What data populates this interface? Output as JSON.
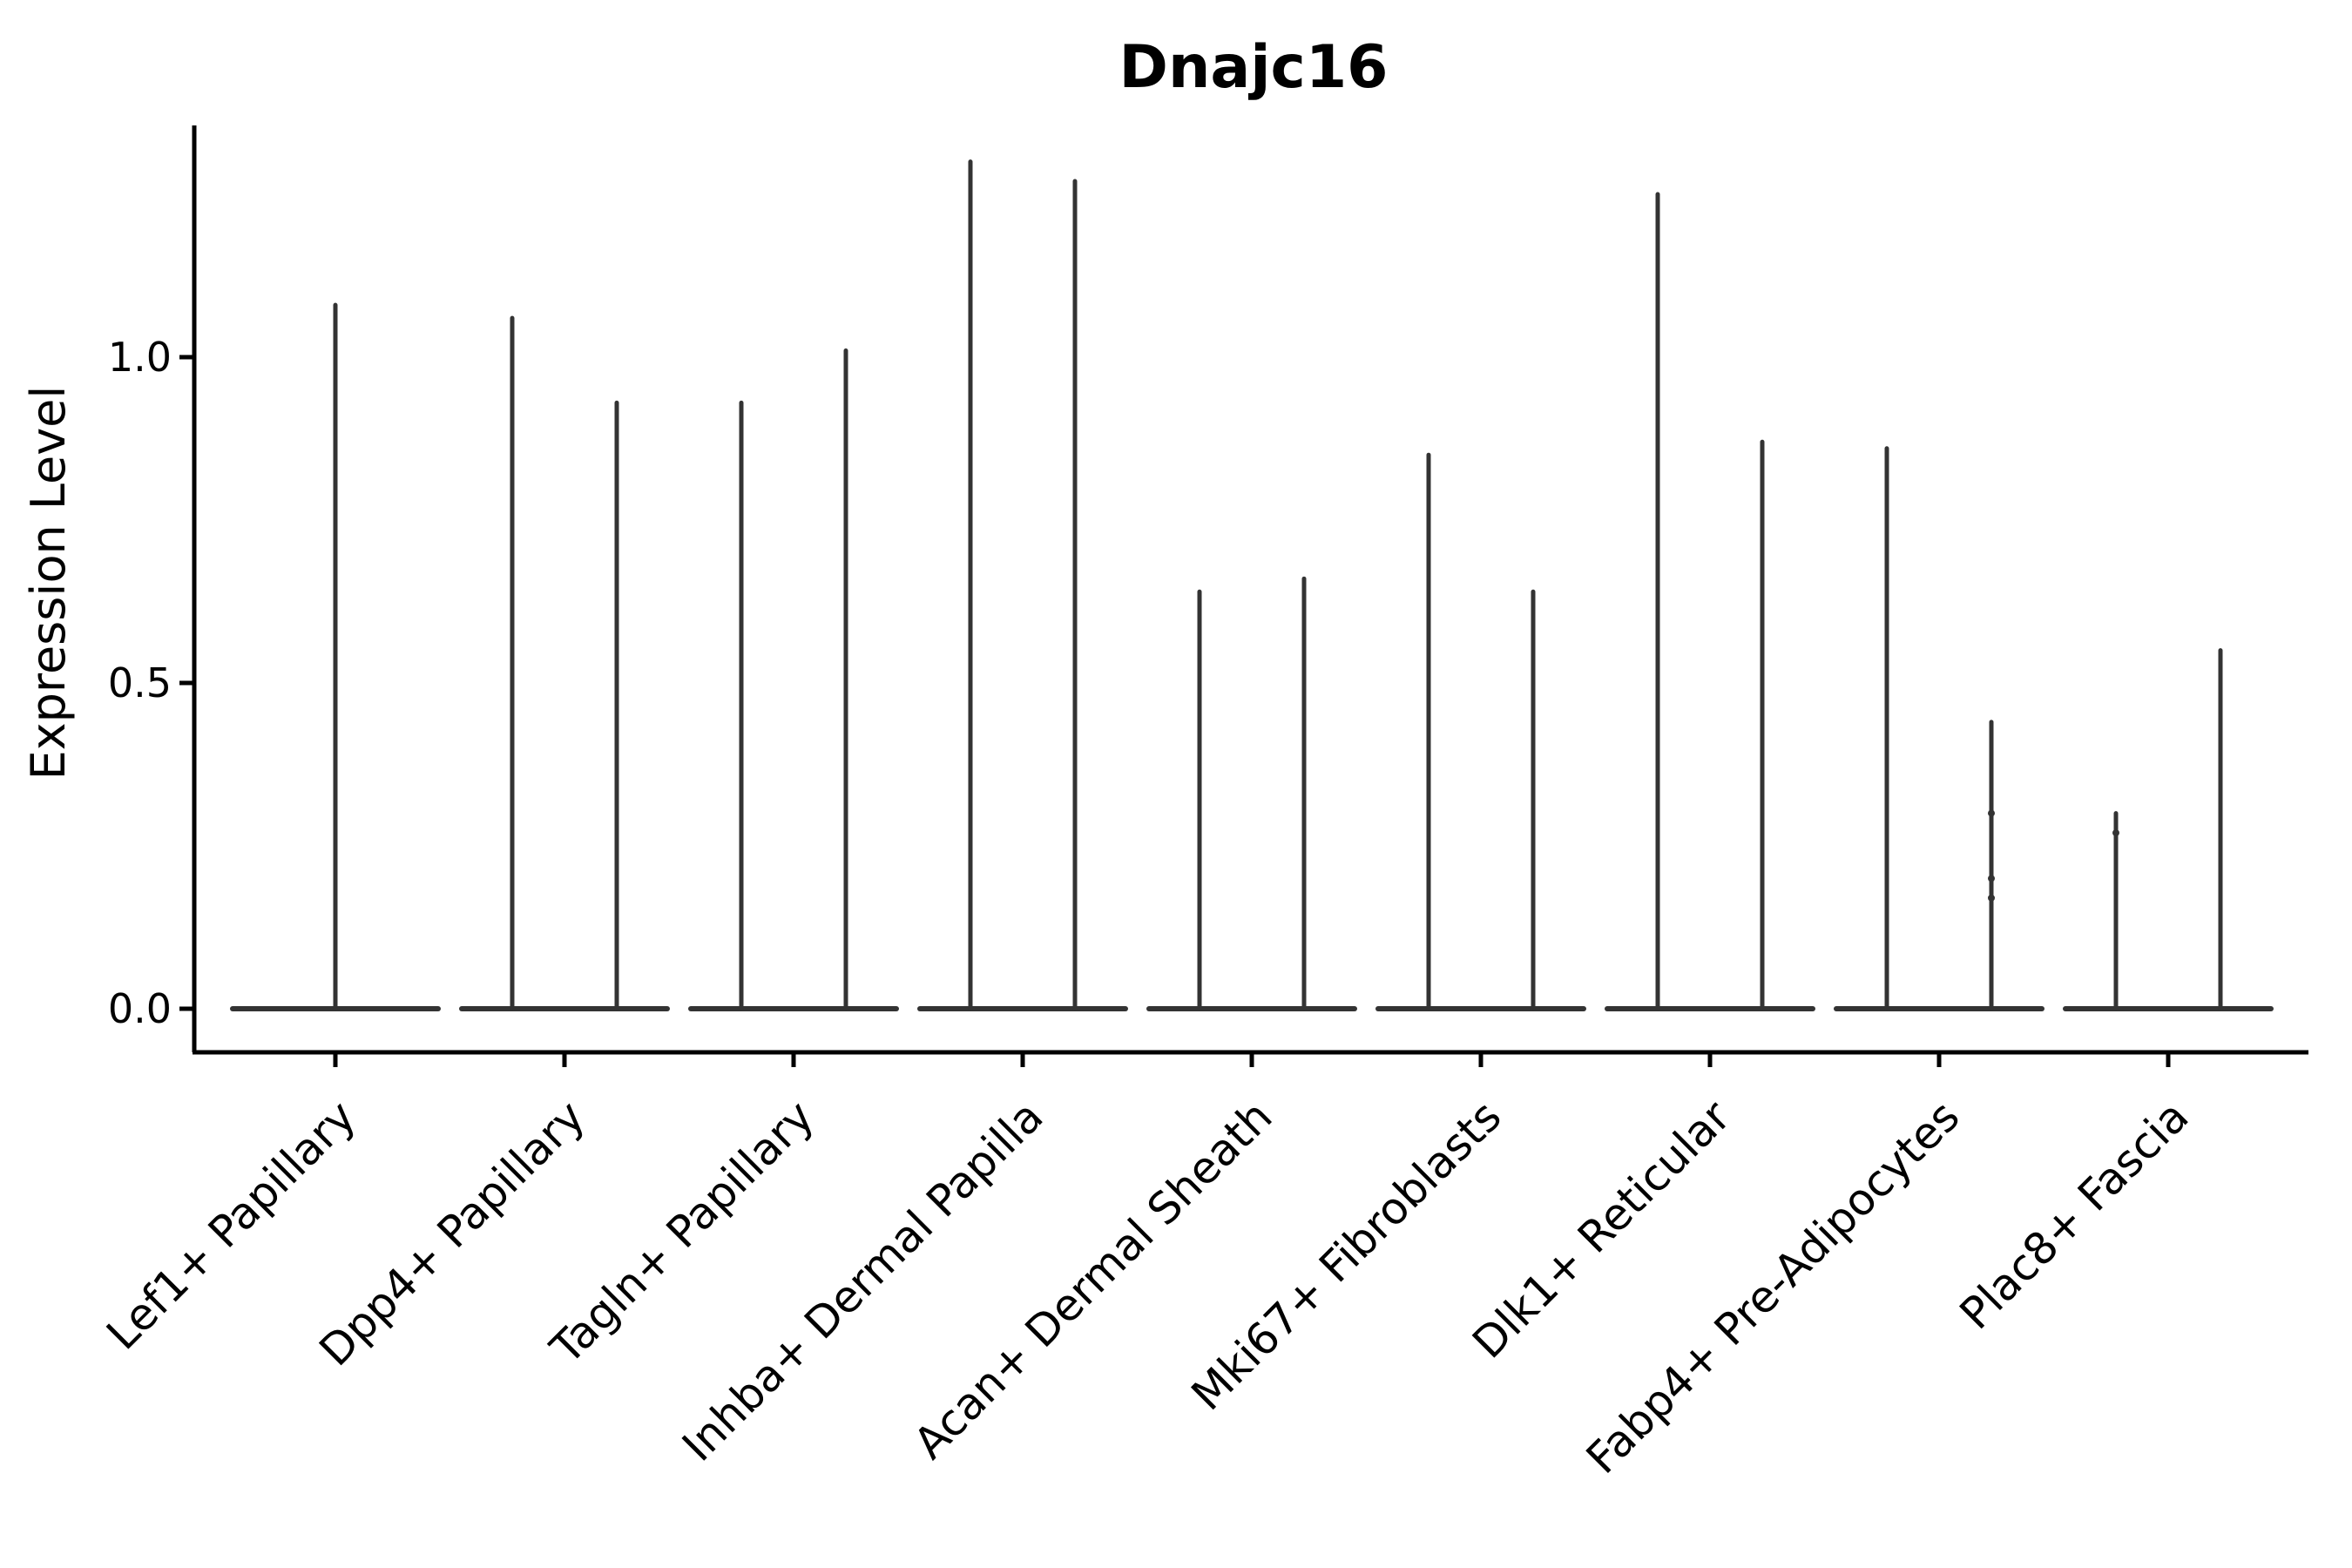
{
  "chart_data": {
    "type": "violin",
    "title": "Dnajc16",
    "xlabel": "",
    "ylabel": "Expression Level",
    "ylim": [
      -0.07,
      1.36
    ],
    "grid": false,
    "legend": false,
    "ytick_values": [
      0.0,
      0.5,
      1.0
    ],
    "ytick_labels": [
      "0.0",
      "0.5",
      "1.0"
    ],
    "violin_color": "#333333",
    "axis_color": "#000000",
    "categories": [
      "Lef1+ Papillary",
      "Dpp4+ Papillary",
      "Tagln+ Papillary",
      "Inhba+ Dermal Papilla",
      "Acan+ Dermal Sheath",
      "Mki67+ Fibroblasts",
      "Dlk1+ Reticular",
      "Fabp4+ Pre-Adipocytes",
      "Plac8+ Fascia"
    ],
    "groups": [
      {
        "label": "Lef1+ Papillary",
        "spikes": [
          {
            "max": 1.08,
            "points": []
          }
        ]
      },
      {
        "label": "Dpp4+ Papillary",
        "spikes": [
          {
            "max": 1.06,
            "points": []
          },
          {
            "max": 0.93,
            "points": []
          }
        ]
      },
      {
        "label": "Tagln+ Papillary",
        "spikes": [
          {
            "max": 0.93,
            "points": []
          },
          {
            "max": 1.01,
            "points": []
          }
        ]
      },
      {
        "label": "Inhba+ Dermal Papilla",
        "spikes": [
          {
            "max": 1.3,
            "points": []
          },
          {
            "max": 1.27,
            "points": []
          }
        ]
      },
      {
        "label": "Acan+ Dermal Sheath",
        "spikes": [
          {
            "max": 0.64,
            "points": []
          },
          {
            "max": 0.66,
            "points": []
          }
        ]
      },
      {
        "label": "Mki67+ Fibroblasts",
        "spikes": [
          {
            "max": 0.85,
            "points": []
          },
          {
            "max": 0.64,
            "points": []
          }
        ]
      },
      {
        "label": "Dlk1+ Reticular",
        "spikes": [
          {
            "max": 1.25,
            "points": []
          },
          {
            "max": 0.87,
            "points": []
          }
        ]
      },
      {
        "label": "Fabp4+ Pre-Adipocytes",
        "spikes": [
          {
            "max": 0.86,
            "points": []
          },
          {
            "max": 0.44,
            "points": [
              0.3,
              0.2,
              0.17
            ]
          }
        ]
      },
      {
        "label": "Plac8+ Fascia",
        "spikes": [
          {
            "max": 0.3,
            "points": [
              0.27
            ]
          },
          {
            "max": 0.55,
            "points": []
          }
        ]
      }
    ]
  }
}
